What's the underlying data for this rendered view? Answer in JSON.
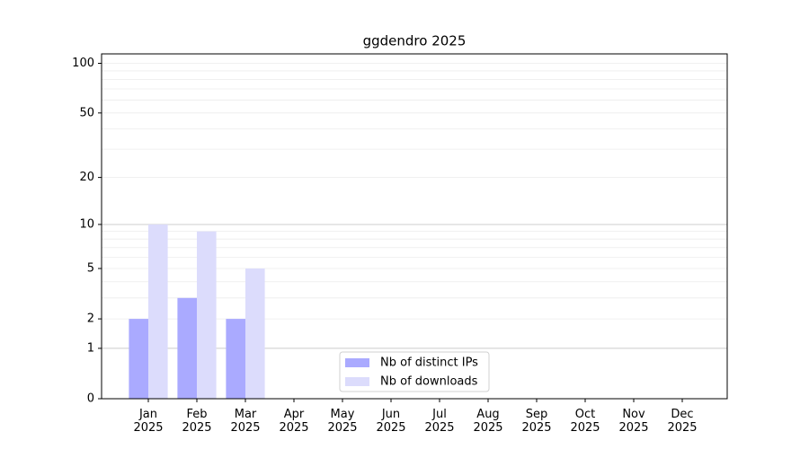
{
  "chart_data": {
    "type": "bar",
    "title": "ggdendro 2025",
    "categories": [
      "Jan 2025",
      "Feb 2025",
      "Mar 2025",
      "Apr 2025",
      "May 2025",
      "Jun 2025",
      "Jul 2025",
      "Aug 2025",
      "Sep 2025",
      "Oct 2025",
      "Nov 2025",
      "Dec 2025"
    ],
    "series": [
      {
        "name": "Nb of distinct IPs",
        "color": "#aaaaff",
        "values": [
          2,
          3,
          2,
          0,
          0,
          0,
          0,
          0,
          0,
          0,
          0,
          0
        ]
      },
      {
        "name": "Nb of downloads",
        "color": "#dcdcfc",
        "values": [
          10,
          9,
          5,
          0,
          0,
          0,
          0,
          0,
          0,
          0,
          0,
          0
        ]
      }
    ],
    "yscale": "log1p",
    "ylim": [
      0,
      114
    ],
    "yticks": [
      0,
      1,
      2,
      5,
      10,
      20,
      50,
      100
    ],
    "major_grid": [
      1,
      10
    ],
    "minor_grid": [
      2,
      3,
      4,
      5,
      6,
      7,
      8,
      9,
      20,
      30,
      40,
      50,
      60,
      70,
      80,
      90,
      100
    ],
    "legend": "lower center"
  }
}
